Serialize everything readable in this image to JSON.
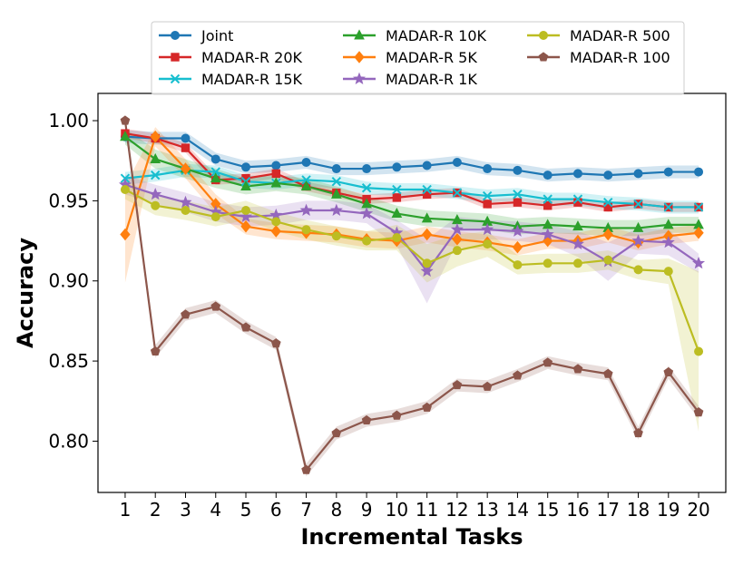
{
  "chart_data": {
    "type": "line",
    "title": "",
    "xlabel": "Incremental Tasks",
    "ylabel": "Accuracy",
    "x": [
      1,
      2,
      3,
      4,
      5,
      6,
      7,
      8,
      9,
      10,
      11,
      12,
      13,
      14,
      15,
      16,
      17,
      18,
      19,
      20
    ],
    "x_tick_labels": [
      "1",
      "2",
      "3",
      "4",
      "5",
      "6",
      "7",
      "8",
      "9",
      "10",
      "11",
      "12",
      "13",
      "14",
      "15",
      "16",
      "17",
      "18",
      "19",
      "20"
    ],
    "xlim": [
      0.1,
      20.9
    ],
    "ylim": [
      0.768,
      1.017
    ],
    "y_ticks": [
      0.8,
      0.85,
      0.9,
      0.95,
      1.0
    ],
    "y_tick_labels": [
      "0.80",
      "0.85",
      "0.90",
      "0.95",
      "1.00"
    ],
    "grid": false,
    "legend_position": "top-center",
    "series": [
      {
        "name": "Joint",
        "color": "#1f77b4",
        "marker": "circle",
        "values": [
          0.99,
          0.989,
          0.989,
          0.976,
          0.971,
          0.972,
          0.974,
          0.97,
          0.97,
          0.971,
          0.972,
          0.974,
          0.97,
          0.969,
          0.966,
          0.967,
          0.966,
          0.967,
          0.968,
          0.968
        ],
        "band": [
          0.004,
          0.004,
          0.004,
          0.004,
          0.004,
          0.004,
          0.004,
          0.004,
          0.004,
          0.004,
          0.004,
          0.004,
          0.004,
          0.004,
          0.004,
          0.004,
          0.004,
          0.004,
          0.004,
          0.004
        ]
      },
      {
        "name": "MADAR-R 20K",
        "color": "#d62728",
        "marker": "square",
        "values": [
          0.992,
          0.989,
          0.983,
          0.963,
          0.964,
          0.967,
          0.959,
          0.955,
          0.951,
          0.952,
          0.954,
          0.955,
          0.948,
          0.949,
          0.947,
          0.949,
          0.946,
          0.948,
          0.946,
          0.946
        ],
        "band": [
          0.003,
          0.003,
          0.003,
          0.003,
          0.003,
          0.003,
          0.003,
          0.003,
          0.003,
          0.003,
          0.003,
          0.003,
          0.003,
          0.003,
          0.003,
          0.003,
          0.003,
          0.003,
          0.003,
          0.003
        ]
      },
      {
        "name": "MADAR-R 15K",
        "color": "#17becf",
        "marker": "x",
        "values": [
          0.964,
          0.966,
          0.969,
          0.968,
          0.962,
          0.961,
          0.963,
          0.962,
          0.958,
          0.957,
          0.957,
          0.955,
          0.953,
          0.954,
          0.951,
          0.951,
          0.949,
          0.948,
          0.946,
          0.946
        ],
        "band": [
          0.004,
          0.004,
          0.004,
          0.004,
          0.004,
          0.004,
          0.004,
          0.004,
          0.004,
          0.004,
          0.004,
          0.004,
          0.004,
          0.004,
          0.004,
          0.004,
          0.004,
          0.004,
          0.004,
          0.004
        ]
      },
      {
        "name": "MADAR-R 10K",
        "color": "#2ca02c",
        "marker": "triangle",
        "values": [
          0.99,
          0.976,
          0.97,
          0.964,
          0.959,
          0.961,
          0.959,
          0.954,
          0.948,
          0.942,
          0.939,
          0.938,
          0.937,
          0.934,
          0.935,
          0.934,
          0.933,
          0.933,
          0.935,
          0.935
        ],
        "band": [
          0.005,
          0.006,
          0.006,
          0.006,
          0.005,
          0.005,
          0.005,
          0.005,
          0.005,
          0.005,
          0.005,
          0.005,
          0.005,
          0.005,
          0.005,
          0.005,
          0.005,
          0.005,
          0.005,
          0.005
        ]
      },
      {
        "name": "MADAR-R 5K",
        "color": "#ff7f0e",
        "marker": "diamond",
        "values": [
          0.929,
          0.99,
          0.97,
          0.948,
          0.934,
          0.931,
          0.93,
          0.929,
          0.926,
          0.925,
          0.929,
          0.926,
          0.924,
          0.921,
          0.925,
          0.925,
          0.929,
          0.924,
          0.928,
          0.93
        ],
        "band": [
          0.03,
          0.006,
          0.006,
          0.006,
          0.005,
          0.005,
          0.005,
          0.005,
          0.005,
          0.005,
          0.005,
          0.005,
          0.005,
          0.005,
          0.005,
          0.005,
          0.005,
          0.005,
          0.005,
          0.005
        ]
      },
      {
        "name": "MADAR-R 1K",
        "color": "#9467bd",
        "marker": "star",
        "values": [
          0.96,
          0.954,
          0.949,
          0.943,
          0.94,
          0.941,
          0.944,
          0.944,
          0.942,
          0.93,
          0.906,
          0.932,
          0.932,
          0.931,
          0.929,
          0.923,
          0.912,
          0.925,
          0.924,
          0.911
        ],
        "band": [
          0.006,
          0.006,
          0.006,
          0.006,
          0.006,
          0.006,
          0.006,
          0.006,
          0.006,
          0.008,
          0.02,
          0.008,
          0.006,
          0.006,
          0.006,
          0.008,
          0.012,
          0.008,
          0.008,
          0.006
        ]
      },
      {
        "name": "MADAR-R 500",
        "color": "#bcbd22",
        "marker": "circle",
        "values": [
          0.957,
          0.947,
          0.944,
          0.94,
          0.944,
          0.937,
          0.932,
          0.928,
          0.925,
          0.927,
          0.911,
          0.919,
          0.923,
          0.91,
          0.911,
          0.911,
          0.913,
          0.907,
          0.906,
          0.856
        ],
        "band": [
          0.006,
          0.006,
          0.006,
          0.006,
          0.006,
          0.006,
          0.006,
          0.006,
          0.006,
          0.008,
          0.012,
          0.01,
          0.008,
          0.006,
          0.006,
          0.006,
          0.006,
          0.006,
          0.008,
          0.05
        ]
      },
      {
        "name": "MADAR-R 100",
        "color": "#8c564b",
        "marker": "pentagon",
        "values": [
          1.0,
          0.856,
          0.879,
          0.884,
          0.871,
          0.861,
          0.782,
          0.805,
          0.813,
          0.816,
          0.821,
          0.835,
          0.834,
          0.841,
          0.849,
          0.845,
          0.842,
          0.805,
          0.843,
          0.818
        ],
        "band": [
          0.004,
          0.004,
          0.004,
          0.004,
          0.004,
          0.004,
          0.004,
          0.004,
          0.004,
          0.004,
          0.004,
          0.004,
          0.004,
          0.004,
          0.004,
          0.004,
          0.004,
          0.004,
          0.004,
          0.004
        ]
      }
    ]
  }
}
